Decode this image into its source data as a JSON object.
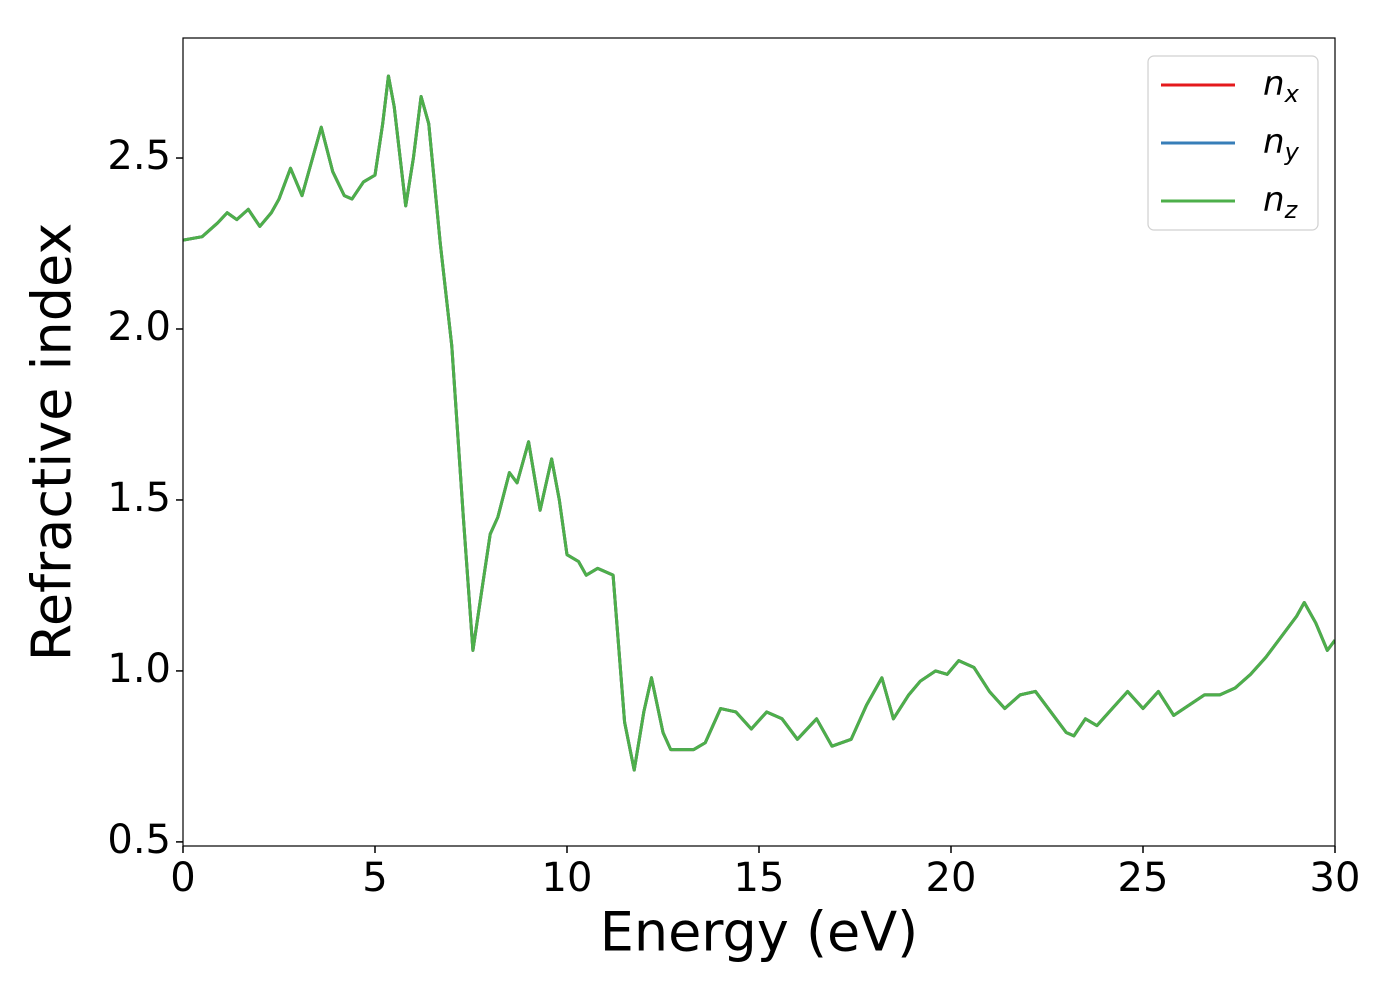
{
  "chart_data": {
    "type": "line",
    "xlabel": "Energy (eV)",
    "ylabel": "Refractive index",
    "x": [
      0,
      0.5,
      0.9,
      1.15,
      1.4,
      1.7,
      2.0,
      2.3,
      2.5,
      2.8,
      3.1,
      3.3,
      3.6,
      3.9,
      4.2,
      4.4,
      4.7,
      5.0,
      5.2,
      5.35,
      5.5,
      5.8,
      6.0,
      6.2,
      6.4,
      6.7,
      7.0,
      7.3,
      7.55,
      7.8,
      8.0,
      8.2,
      8.5,
      8.7,
      9.0,
      9.3,
      9.6,
      9.8,
      10.0,
      10.3,
      10.5,
      10.8,
      11.0,
      11.2,
      11.5,
      11.75,
      12.0,
      12.2,
      12.5,
      12.7,
      13.0,
      13.3,
      13.6,
      14.0,
      14.4,
      14.8,
      15.2,
      15.6,
      16.0,
      16.5,
      16.9,
      17.4,
      17.8,
      18.2,
      18.5,
      18.9,
      19.2,
      19.6,
      19.9,
      20.2,
      20.6,
      21.0,
      21.4,
      21.8,
      22.2,
      22.6,
      23.0,
      23.2,
      23.5,
      23.8,
      24.2,
      24.6,
      25.0,
      25.4,
      25.8,
      26.2,
      26.6,
      27.0,
      27.4,
      27.8,
      28.2,
      28.6,
      29.0,
      29.2,
      29.5,
      29.8,
      30.0
    ],
    "series": [
      {
        "name": "n_x",
        "color": "#e41a1c",
        "values": [
          2.26,
          2.27,
          2.31,
          2.34,
          2.32,
          2.35,
          2.3,
          2.34,
          2.38,
          2.47,
          2.39,
          2.47,
          2.59,
          2.46,
          2.39,
          2.38,
          2.43,
          2.45,
          2.6,
          2.74,
          2.65,
          2.36,
          2.5,
          2.68,
          2.6,
          2.25,
          1.95,
          1.45,
          1.06,
          1.25,
          1.4,
          1.45,
          1.58,
          1.55,
          1.67,
          1.47,
          1.62,
          1.5,
          1.34,
          1.32,
          1.28,
          1.3,
          1.29,
          1.28,
          0.85,
          0.71,
          0.88,
          0.98,
          0.82,
          0.77,
          0.77,
          0.77,
          0.79,
          0.89,
          0.88,
          0.83,
          0.88,
          0.86,
          0.8,
          0.86,
          0.78,
          0.8,
          0.9,
          0.98,
          0.86,
          0.93,
          0.97,
          1.0,
          0.99,
          1.03,
          1.01,
          0.94,
          0.89,
          0.93,
          0.94,
          0.88,
          0.82,
          0.81,
          0.86,
          0.84,
          0.89,
          0.94,
          0.89,
          0.94,
          0.87,
          0.9,
          0.93,
          0.93,
          0.95,
          0.99,
          1.04,
          1.1,
          1.16,
          1.2,
          1.14,
          1.06,
          1.09
        ]
      },
      {
        "name": "n_y",
        "color": "#377eb8",
        "values": [
          2.26,
          2.27,
          2.31,
          2.34,
          2.32,
          2.35,
          2.3,
          2.34,
          2.38,
          2.47,
          2.39,
          2.47,
          2.59,
          2.46,
          2.39,
          2.38,
          2.43,
          2.45,
          2.6,
          2.74,
          2.65,
          2.36,
          2.5,
          2.68,
          2.6,
          2.25,
          1.95,
          1.45,
          1.06,
          1.25,
          1.4,
          1.45,
          1.58,
          1.55,
          1.67,
          1.47,
          1.62,
          1.5,
          1.34,
          1.32,
          1.28,
          1.3,
          1.29,
          1.28,
          0.85,
          0.71,
          0.88,
          0.98,
          0.82,
          0.77,
          0.77,
          0.77,
          0.79,
          0.89,
          0.88,
          0.83,
          0.88,
          0.86,
          0.8,
          0.86,
          0.78,
          0.8,
          0.9,
          0.98,
          0.86,
          0.93,
          0.97,
          1.0,
          0.99,
          1.03,
          1.01,
          0.94,
          0.89,
          0.93,
          0.94,
          0.88,
          0.82,
          0.81,
          0.86,
          0.84,
          0.89,
          0.94,
          0.89,
          0.94,
          0.87,
          0.9,
          0.93,
          0.93,
          0.95,
          0.99,
          1.04,
          1.1,
          1.16,
          1.2,
          1.14,
          1.06,
          1.09
        ]
      },
      {
        "name": "n_z",
        "color": "#4daf4a",
        "values": [
          2.26,
          2.27,
          2.31,
          2.34,
          2.32,
          2.35,
          2.3,
          2.34,
          2.38,
          2.47,
          2.39,
          2.47,
          2.59,
          2.46,
          2.39,
          2.38,
          2.43,
          2.45,
          2.6,
          2.74,
          2.65,
          2.36,
          2.5,
          2.68,
          2.6,
          2.25,
          1.95,
          1.45,
          1.06,
          1.25,
          1.4,
          1.45,
          1.58,
          1.55,
          1.67,
          1.47,
          1.62,
          1.5,
          1.34,
          1.32,
          1.28,
          1.3,
          1.29,
          1.28,
          0.85,
          0.71,
          0.88,
          0.98,
          0.82,
          0.77,
          0.77,
          0.77,
          0.79,
          0.89,
          0.88,
          0.83,
          0.88,
          0.86,
          0.8,
          0.86,
          0.78,
          0.8,
          0.9,
          0.98,
          0.86,
          0.93,
          0.97,
          1.0,
          0.99,
          1.03,
          1.01,
          0.94,
          0.89,
          0.93,
          0.94,
          0.88,
          0.82,
          0.81,
          0.86,
          0.84,
          0.89,
          0.94,
          0.89,
          0.94,
          0.87,
          0.9,
          0.93,
          0.93,
          0.95,
          0.99,
          1.04,
          1.1,
          1.16,
          1.2,
          1.14,
          1.06,
          1.09
        ]
      }
    ],
    "xlim": [
      0,
      30
    ],
    "xticks": [
      0,
      5,
      10,
      15,
      20,
      25,
      30
    ],
    "ylim": [
      0.488,
      2.851
    ],
    "yticks": [
      0.5,
      {
        "value": 1,
        "label": "1.0"
      },
      1.5,
      {
        "value": 2,
        "label": "2.0"
      },
      2.5
    ],
    "grid": false,
    "legend_loc": "upper right"
  }
}
